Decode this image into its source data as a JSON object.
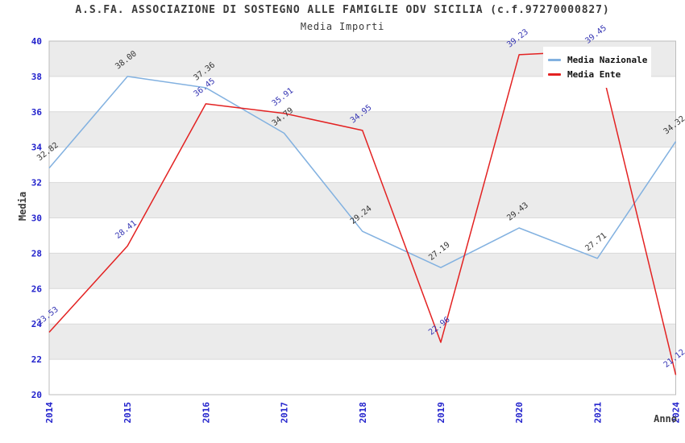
{
  "chart_data": {
    "type": "line",
    "title": "A.S.FA. ASSOCIAZIONE DI SOSTEGNO ALLE FAMIGLIE ODV SICILIA (c.f.97270000827)",
    "subtitle": "Media Importi",
    "xlabel": "Anno",
    "ylabel": "Media",
    "categories": [
      "2014",
      "2015",
      "2016",
      "2017",
      "2018",
      "2019",
      "2020",
      "2021",
      "2024"
    ],
    "series": [
      {
        "name": "Media Nazionale",
        "color": "#82b1e0",
        "label_color": "#333333",
        "values": [
          32.82,
          38.0,
          37.36,
          34.79,
          29.24,
          27.19,
          29.43,
          27.71,
          34.32
        ]
      },
      {
        "name": "Media Ente",
        "color": "#e32222",
        "label_color": "#3333b3",
        "values": [
          23.53,
          28.41,
          36.45,
          35.91,
          34.95,
          22.96,
          39.23,
          39.45,
          21.12
        ]
      }
    ],
    "ylim": [
      20,
      40
    ],
    "yticks": [
      20,
      22,
      24,
      26,
      28,
      30,
      32,
      34,
      36,
      38,
      40
    ],
    "value_label_format": "2-decimals",
    "value_label_rotation_deg": -38,
    "grid": "horizontal gridlines every 2 units with alternating gray/white bands",
    "legend_position": "top-right",
    "colors": {
      "tick_labels": "#2222cc",
      "band_fill": "#ebebeb",
      "gridline": "#d9d9d9",
      "plot_border": "#bdbdbd",
      "title_text": "#3a3a3a"
    }
  }
}
